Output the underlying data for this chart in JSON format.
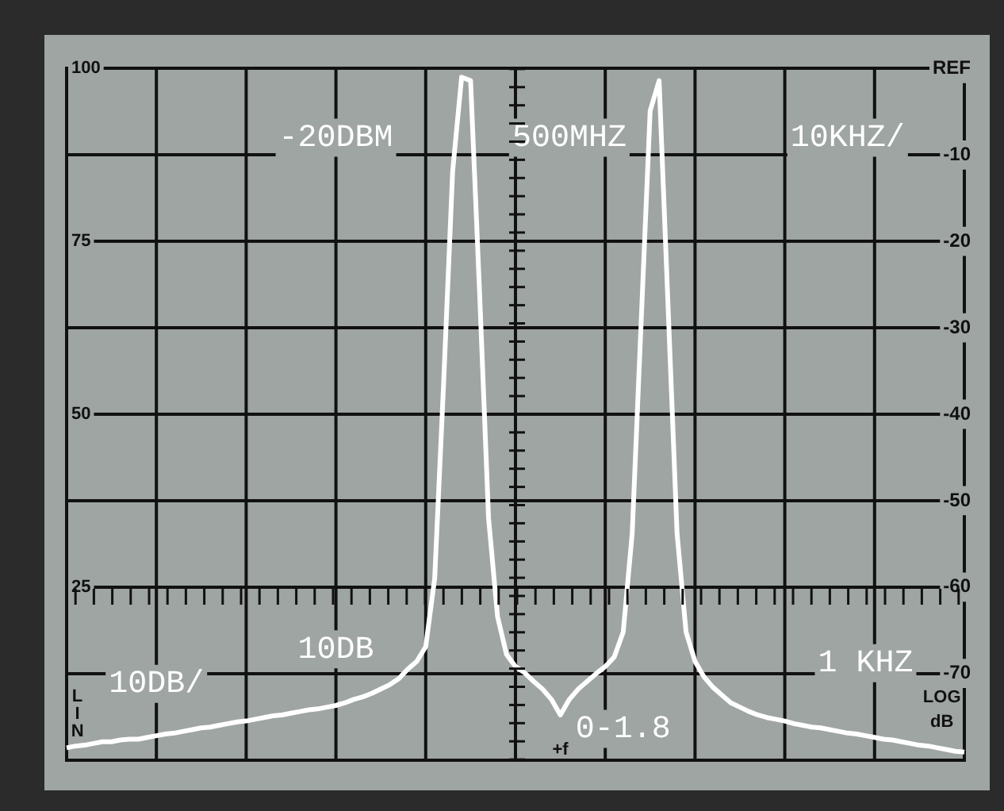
{
  "chart_data": {
    "type": "line",
    "categories": [
      null,
      null,
      null,
      null,
      null,
      null,
      null,
      null,
      null,
      null,
      null,
      null,
      null,
      null,
      null,
      null,
      null,
      null,
      null,
      null,
      null,
      null,
      null,
      null,
      null,
      null,
      null,
      null,
      null,
      null,
      null,
      null,
      null,
      null,
      null,
      null,
      null,
      null,
      null,
      null,
      null,
      null,
      null,
      null,
      null,
      null,
      null,
      null,
      null,
      null,
      null,
      null,
      null,
      null,
      null,
      null,
      null,
      null,
      null,
      null,
      null,
      null,
      null,
      null,
      null,
      null,
      null,
      null,
      null,
      null,
      null,
      null,
      null,
      null,
      null,
      null,
      null,
      null,
      null,
      null,
      null,
      null,
      null,
      null,
      null,
      null,
      null,
      null,
      null,
      null,
      null,
      null,
      null,
      null,
      null,
      null,
      null,
      null,
      null,
      null,
      null
    ],
    "series": [
      {
        "color": "#ffffff",
        "axis": "y2",
        "values": [
          -78.6,
          -78.4,
          -78.3,
          -78.1,
          -77.9,
          -77.9,
          -77.7,
          -77.6,
          -77.6,
          -77.4,
          -77.2,
          -77.0,
          -76.9,
          -76.7,
          -76.5,
          -76.3,
          -76.2,
          -76.0,
          -75.8,
          -75.6,
          -75.5,
          -75.3,
          -75.1,
          -74.9,
          -74.8,
          -74.6,
          -74.4,
          -74.2,
          -74.1,
          -73.9,
          -73.7,
          -73.4,
          -73.0,
          -72.7,
          -72.3,
          -71.8,
          -71.3,
          -70.6,
          -69.5,
          -68.6,
          -66.9,
          -59.0,
          -36.3,
          -11.9,
          -1.0,
          -1.4,
          -25.9,
          -52.0,
          -63.4,
          -67.8,
          -69.2,
          -69.9,
          -70.9,
          -71.8,
          -73.0,
          -74.8,
          -73.0,
          -71.8,
          -70.9,
          -70.0,
          -69.2,
          -68.1,
          -65.2,
          -53.8,
          -29.3,
          -4.9,
          -1.4,
          -27.6,
          -53.8,
          -65.2,
          -68.6,
          -70.4,
          -71.6,
          -72.5,
          -73.4,
          -73.9,
          -74.4,
          -74.8,
          -75.1,
          -75.3,
          -75.5,
          -75.8,
          -76.0,
          -76.2,
          -76.3,
          -76.5,
          -76.7,
          -76.9,
          -77.0,
          -77.2,
          -77.4,
          -77.6,
          -77.7,
          -77.9,
          -78.1,
          -78.3,
          -78.4,
          -78.6,
          -78.8,
          -79.0,
          -79.1
        ]
      }
    ],
    "ylim": [
      0,
      100
    ],
    "yticks": [
      25,
      50,
      75,
      100
    ],
    "y2lim": [
      -80,
      0
    ],
    "y2ticks": [
      {
        "value": 0,
        "label": "REF"
      },
      -10,
      -20,
      -30,
      -40,
      -50,
      -60,
      -70
    ],
    "grid": "y2",
    "legend": false,
    "marker": "none",
    "line_style": "solid",
    "annotations": [
      "-20DBM",
      "500MHZ",
      "10KHZ/",
      "10DB/",
      "10DB",
      "0-1.8",
      "1 KHZ",
      "LIN",
      "LOG",
      "dB",
      "+f"
    ]
  }
}
